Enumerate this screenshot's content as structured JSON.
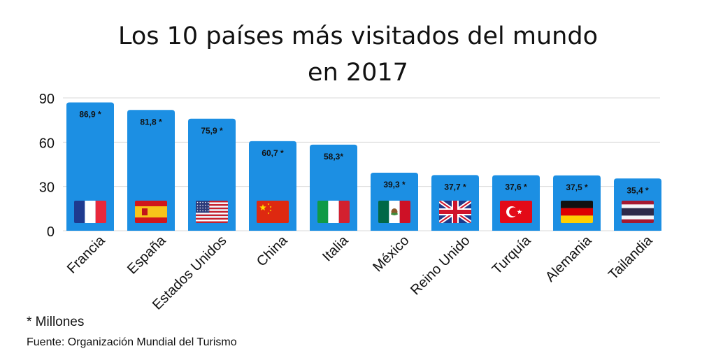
{
  "title": {
    "line1": "Los 10 países más visitados del mundo",
    "line2": "en 2017"
  },
  "footnote": "* Millones",
  "source": "Fuente: Organización Mundial del Turismo",
  "colors": {
    "bar": "#1c8fe3",
    "grid": "#d9d9d9",
    "text": "#111111"
  },
  "chart_data": {
    "type": "bar",
    "title": "Los 10 países más visitados del mundo en 2017",
    "xlabel": "",
    "ylabel": "",
    "ylim": [
      0,
      90
    ],
    "yticks": [
      0,
      30,
      60,
      90
    ],
    "grid": true,
    "categories": [
      "Francia",
      "España",
      "Estados Unidos",
      "China",
      "Italia",
      "México",
      "Reino Unido",
      "Turquía",
      "Alemania",
      "Tailandia"
    ],
    "values": [
      86.9,
      81.8,
      75.9,
      60.7,
      58.3,
      39.3,
      37.7,
      37.6,
      37.5,
      35.4
    ],
    "data_labels": [
      "86,9 *",
      "81,8 *",
      "75,9 *",
      "60,7 *",
      "58,3*",
      "39,3 *",
      "37,7 *",
      "37,6 *",
      "37,5 *",
      "35,4 *"
    ],
    "flag_icons": [
      "france-flag-icon",
      "spain-flag-icon",
      "usa-flag-icon",
      "china-flag-icon",
      "italy-flag-icon",
      "mexico-flag-icon",
      "uk-flag-icon",
      "turkey-flag-icon",
      "germany-flag-icon",
      "thailand-flag-icon"
    ]
  }
}
